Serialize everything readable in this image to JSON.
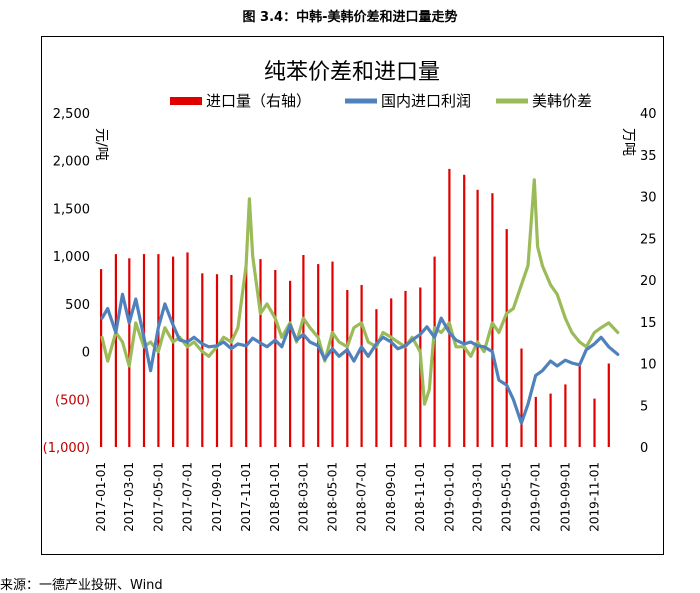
{
  "figure": {
    "title": "图 3.4：中韩-美韩价差和进口量走势",
    "source": "来源：一德产业投研、Wind"
  },
  "chart_data": {
    "type": "line",
    "title": "纯苯价差和进口量",
    "y_left": {
      "label": "元/吨",
      "range": [
        -1000,
        2500
      ],
      "ticks": [
        -1000,
        -500,
        0,
        500,
        1000,
        1500,
        2000,
        2500
      ],
      "tick_labels": [
        "(1,000)",
        "(500)",
        "0",
        "500",
        "1,000",
        "1,500",
        "2,000",
        "2,500"
      ],
      "negative_tick_color": "#c00000"
    },
    "y_right": {
      "label": "万吨",
      "range": [
        0,
        40
      ],
      "ticks": [
        0,
        5,
        10,
        15,
        20,
        25,
        30,
        35,
        40
      ],
      "tick_labels": [
        "0",
        "5",
        "10",
        "15",
        "20",
        "25",
        "30",
        "35",
        "40"
      ]
    },
    "x_axis": {
      "range": [
        "2017-01-01",
        "2019-12-31"
      ],
      "tick_labels": [
        "2017-01-01",
        "2017-03-01",
        "2017-05-01",
        "2017-07-01",
        "2017-09-01",
        "2017-11-01",
        "2018-01-01",
        "2018-03-01",
        "2018-05-01",
        "2018-07-01",
        "2018-09-01",
        "2018-11-01",
        "2019-01-01",
        "2019-03-01",
        "2019-05-01",
        "2019-07-01",
        "2019-09-01",
        "2019-11-01"
      ]
    },
    "legend": {
      "placement": "top",
      "entries": [
        "进口量（右轴）",
        "国内进口利润",
        "美韩价差"
      ]
    },
    "grid": false,
    "series": [
      {
        "name": "进口量（右轴）",
        "type": "bar",
        "axis": "right",
        "color": "#e00000",
        "x": [
          "2017-01",
          "2017-02",
          "2017-03",
          "2017-04",
          "2017-05",
          "2017-06",
          "2017-07",
          "2017-08",
          "2017-09",
          "2017-10",
          "2017-11",
          "2017-12",
          "2018-01",
          "2018-02",
          "2018-03",
          "2018-04",
          "2018-05",
          "2018-06",
          "2018-07",
          "2018-08",
          "2018-09",
          "2018-10",
          "2018-11",
          "2018-12",
          "2019-01",
          "2019-02",
          "2019-03",
          "2019-04",
          "2019-05",
          "2019-06",
          "2019-07",
          "2019-08",
          "2019-09",
          "2019-10",
          "2019-11",
          "2019-12"
        ],
        "values": [
          21.3,
          23.1,
          22.6,
          23.1,
          23.1,
          22.8,
          23.3,
          20.8,
          20.7,
          20.6,
          21.7,
          22.5,
          21.2,
          19.9,
          23.0,
          21.9,
          22.2,
          18.8,
          19.4,
          16.5,
          17.8,
          18.7,
          19.1,
          22.8,
          33.3,
          32.6,
          30.8,
          30.4,
          26.1,
          11.8,
          6.0,
          6.4,
          7.5,
          10.1,
          5.8,
          10.0
        ]
      },
      {
        "name": "国内进口利润",
        "type": "line",
        "axis": "left",
        "color": "#4f81bd",
        "x": [
          "2017-01-03",
          "2017-01-15",
          "2017-02-01",
          "2017-02-15",
          "2017-03-01",
          "2017-03-15",
          "2017-04-01",
          "2017-04-15",
          "2017-05-01",
          "2017-05-15",
          "2017-06-01",
          "2017-06-15",
          "2017-07-01",
          "2017-07-15",
          "2017-08-01",
          "2017-08-15",
          "2017-09-01",
          "2017-09-15",
          "2017-10-01",
          "2017-10-15",
          "2017-11-01",
          "2017-11-15",
          "2017-12-01",
          "2017-12-15",
          "2018-01-01",
          "2018-01-15",
          "2018-02-01",
          "2018-02-15",
          "2018-03-01",
          "2018-03-15",
          "2018-04-01",
          "2018-04-15",
          "2018-05-01",
          "2018-05-15",
          "2018-06-01",
          "2018-06-15",
          "2018-07-01",
          "2018-07-15",
          "2018-08-01",
          "2018-08-15",
          "2018-09-01",
          "2018-09-15",
          "2018-10-01",
          "2018-10-15",
          "2018-11-01",
          "2018-11-15",
          "2018-12-01",
          "2018-12-15",
          "2019-01-01",
          "2019-01-15",
          "2019-02-01",
          "2019-02-15",
          "2019-03-01",
          "2019-03-15",
          "2019-04-01",
          "2019-04-15",
          "2019-05-01",
          "2019-05-15",
          "2019-06-01",
          "2019-06-15",
          "2019-07-01",
          "2019-07-15",
          "2019-08-01",
          "2019-08-15",
          "2019-09-01",
          "2019-09-15",
          "2019-10-01",
          "2019-10-15",
          "2019-11-01",
          "2019-11-15",
          "2019-12-01",
          "2019-12-20"
        ],
        "values": [
          350,
          450,
          200,
          600,
          300,
          550,
          150,
          -200,
          250,
          500,
          280,
          120,
          100,
          150,
          80,
          50,
          60,
          100,
          30,
          80,
          60,
          140,
          90,
          50,
          120,
          50,
          280,
          120,
          180,
          100,
          60,
          -80,
          30,
          -50,
          20,
          -100,
          50,
          -50,
          80,
          150,
          100,
          30,
          60,
          120,
          180,
          260,
          150,
          350,
          200,
          120,
          80,
          100,
          60,
          50,
          0,
          -300,
          -350,
          -500,
          -750,
          -550,
          -250,
          -200,
          -100,
          -150,
          -90,
          -120,
          -140,
          20,
          80,
          150,
          50,
          -30
        ]
      },
      {
        "name": "美韩价差",
        "type": "line",
        "axis": "left",
        "color": "#9bbb59",
        "x": [
          "2017-01-03",
          "2017-01-15",
          "2017-02-01",
          "2017-02-15",
          "2017-03-01",
          "2017-03-15",
          "2017-04-01",
          "2017-04-15",
          "2017-05-01",
          "2017-05-15",
          "2017-06-01",
          "2017-06-15",
          "2017-07-01",
          "2017-07-15",
          "2017-08-01",
          "2017-08-15",
          "2017-09-01",
          "2017-09-15",
          "2017-10-01",
          "2017-10-15",
          "2017-11-01",
          "2017-11-08",
          "2017-11-15",
          "2017-12-01",
          "2017-12-15",
          "2018-01-01",
          "2018-01-15",
          "2018-02-01",
          "2018-02-15",
          "2018-03-01",
          "2018-03-15",
          "2018-04-01",
          "2018-04-15",
          "2018-05-01",
          "2018-05-15",
          "2018-06-01",
          "2018-06-15",
          "2018-07-01",
          "2018-07-15",
          "2018-08-01",
          "2018-08-15",
          "2018-09-01",
          "2018-09-15",
          "2018-10-01",
          "2018-10-15",
          "2018-11-01",
          "2018-11-10",
          "2018-11-20",
          "2018-12-01",
          "2018-12-15",
          "2019-01-01",
          "2019-01-15",
          "2019-02-01",
          "2019-02-15",
          "2019-03-01",
          "2019-03-15",
          "2019-04-01",
          "2019-04-15",
          "2019-05-01",
          "2019-05-15",
          "2019-06-01",
          "2019-06-15",
          "2019-06-28",
          "2019-07-05",
          "2019-07-15",
          "2019-08-01",
          "2019-08-15",
          "2019-09-01",
          "2019-09-15",
          "2019-10-01",
          "2019-10-15",
          "2019-11-01",
          "2019-11-15",
          "2019-12-01",
          "2019-12-20"
        ],
        "values": [
          150,
          -100,
          200,
          100,
          -150,
          300,
          50,
          100,
          0,
          250,
          100,
          150,
          50,
          100,
          0,
          -50,
          50,
          150,
          100,
          250,
          900,
          1600,
          1000,
          400,
          500,
          350,
          150,
          300,
          100,
          350,
          250,
          150,
          -100,
          200,
          100,
          50,
          250,
          300,
          100,
          50,
          200,
          150,
          100,
          50,
          150,
          0,
          -550,
          -400,
          250,
          200,
          300,
          50,
          50,
          -50,
          100,
          0,
          300,
          200,
          400,
          450,
          700,
          900,
          1800,
          1100,
          900,
          700,
          600,
          350,
          200,
          100,
          50,
          200,
          250,
          300,
          200
        ]
      }
    ]
  }
}
